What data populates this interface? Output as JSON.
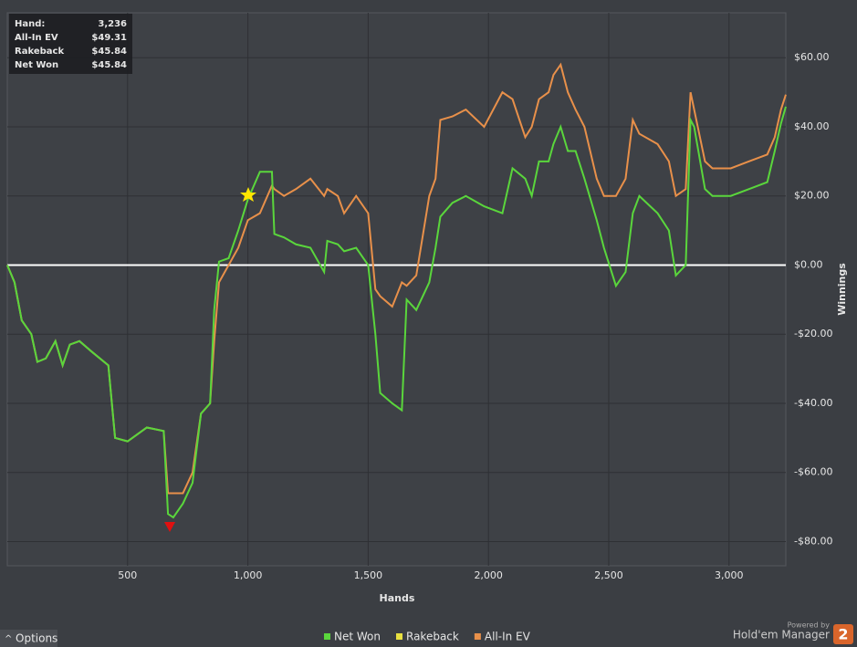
{
  "chart_data": {
    "type": "line",
    "x_label": "Hands",
    "y_label": "Winnings",
    "xlim": [
      0,
      3236
    ],
    "ylim": [
      -87,
      73
    ],
    "xticks": [
      500,
      {
        "value": 1000,
        "label": "1,000"
      },
      {
        "value": 1500,
        "label": "1,500"
      },
      {
        "value": 2000,
        "label": "2,000"
      },
      {
        "value": 2500,
        "label": "2,500"
      },
      {
        "value": 3000,
        "label": "3,000"
      }
    ],
    "yticks": [
      {
        "value": -80,
        "label": "-$80.00"
      },
      {
        "value": -60,
        "label": "-$60.00"
      },
      {
        "value": -40,
        "label": "-$40.00"
      },
      {
        "value": -20,
        "label": "-$20.00"
      },
      {
        "value": 0,
        "label": "$0.00"
      },
      {
        "value": 20,
        "label": "$20.00"
      },
      {
        "value": 40,
        "label": "$40.00"
      },
      {
        "value": 60,
        "label": "$60.00"
      }
    ],
    "grid": true,
    "legend": "bottom",
    "x": [
      0,
      30,
      60,
      100,
      125,
      160,
      200,
      230,
      260,
      300,
      350,
      420,
      448,
      500,
      580,
      650,
      668,
      690,
      730,
      770,
      805,
      843,
      860,
      880,
      920,
      960,
      1000,
      1050,
      1100,
      1110,
      1150,
      1200,
      1260,
      1317,
      1330,
      1374,
      1400,
      1450,
      1500,
      1530,
      1550,
      1600,
      1640,
      1660,
      1700,
      1754,
      1780,
      1800,
      1850,
      1906,
      1982,
      2058,
      2100,
      2153,
      2180,
      2210,
      2250,
      2270,
      2300,
      2330,
      2362,
      2399,
      2450,
      2480,
      2530,
      2570,
      2600,
      2627,
      2703,
      2750,
      2779,
      2820,
      2840,
      2855,
      2900,
      2931,
      3007,
      3083,
      3159,
      3190,
      3216,
      3236
    ],
    "series": [
      {
        "name": "Net Won",
        "color": "#5ad63c",
        "values": [
          0,
          -5,
          -16,
          -20,
          -28,
          -27,
          -22,
          -29,
          -23,
          -22,
          -25,
          -29,
          -50,
          -51,
          -47,
          -48,
          -72,
          -73,
          -69,
          -63,
          -43,
          -40,
          -13,
          1,
          2,
          10,
          19,
          27,
          27,
          9,
          8,
          6,
          5,
          -2,
          7,
          6,
          4,
          5,
          0,
          -20,
          -37,
          -40,
          -42,
          -10,
          -13,
          -5,
          5,
          14,
          18,
          20,
          17,
          15,
          28,
          25,
          20,
          30,
          30,
          35,
          40,
          33,
          33,
          25,
          13,
          5,
          -6,
          -2,
          15,
          20,
          15,
          10,
          -3,
          0,
          42,
          40,
          22,
          20,
          20,
          22,
          24,
          33,
          41,
          45.84
        ]
      },
      {
        "name": "Rakeback",
        "color": "#e8e040"
      },
      {
        "name": "All-In EV",
        "color": "#e8904a",
        "values": [
          0,
          -5,
          -16,
          -20,
          -28,
          -27,
          -22,
          -29,
          -23,
          -22,
          -25,
          -29,
          -50,
          -51,
          -47,
          -48,
          -66,
          -66,
          -66,
          -60,
          -43,
          -40,
          -22,
          -5,
          0,
          5,
          13,
          15,
          23,
          22,
          20,
          22,
          25,
          20,
          22,
          20,
          15,
          20,
          15,
          -7,
          -9,
          -12,
          -5,
          -6,
          -3,
          20,
          25,
          42,
          43,
          45,
          40,
          50,
          48,
          37,
          40,
          48,
          50,
          55,
          58,
          50,
          45,
          40,
          25,
          20,
          20,
          25,
          42,
          38,
          35,
          30,
          20,
          22,
          50,
          45,
          30,
          28,
          28,
          30,
          32,
          37,
          45,
          49.31
        ]
      }
    ]
  },
  "info": {
    "rows": [
      {
        "label": "Hand:",
        "value": "3,236"
      },
      {
        "label": "All-In EV",
        "value": "$49.31"
      },
      {
        "label": "Rakeback",
        "value": "$45.84"
      },
      {
        "label": "Net Won",
        "value": "$45.84"
      }
    ]
  },
  "footer": {
    "options": "Options",
    "powered_by": "Powered by",
    "product": "Hold'em Manager",
    "version": "2"
  }
}
